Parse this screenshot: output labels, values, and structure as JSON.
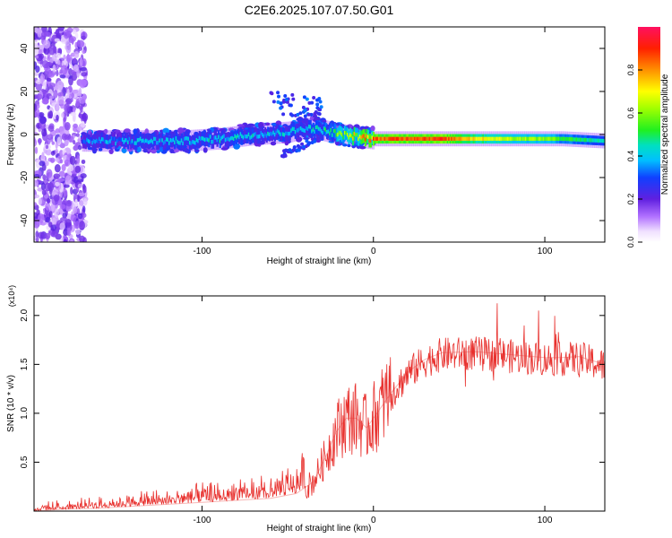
{
  "title": "C2E6.2025.107.07.50.G01",
  "chart_data": [
    {
      "type": "heatmap",
      "xlabel": "Height of straight line (km)",
      "ylabel": "Frequency (Hz)",
      "xlim": [
        -198,
        135
      ],
      "ylim": [
        -50,
        50
      ],
      "x_ticks": [
        -100,
        0,
        100
      ],
      "x_tick_labels": [
        "-100",
        "0",
        "100"
      ],
      "y_ticks": [
        -40,
        -20,
        0,
        20,
        40
      ],
      "y_tick_labels": [
        "-40",
        "-20",
        "0",
        "20",
        "40"
      ],
      "colorbar": {
        "label": "Normalized spectral amplitude",
        "range": [
          0.0,
          1.0
        ],
        "ticks": [
          0.0,
          0.2,
          0.4,
          0.6,
          0.8
        ],
        "tick_labels": [
          "0.0",
          "0.2",
          "0.4",
          "0.6",
          "0.8"
        ]
      },
      "ridge": {
        "height_km": [
          -170,
          -140,
          -110,
          -90,
          -70,
          -50,
          -40,
          -30,
          -20,
          -10,
          0,
          20,
          40,
          60,
          80,
          100,
          110,
          135
        ],
        "frequency_hz": [
          -3,
          -3,
          -3,
          -2,
          0,
          1,
          3,
          2,
          0,
          -1,
          -2,
          -2,
          -2,
          -2,
          -2,
          -2,
          -2,
          -3
        ],
        "amplitude": [
          0.35,
          0.38,
          0.4,
          0.42,
          0.42,
          0.4,
          0.42,
          0.45,
          0.6,
          0.7,
          0.85,
          0.9,
          0.9,
          0.75,
          0.65,
          0.62,
          0.55,
          0.45
        ]
      },
      "noise_region_km": [
        -198,
        -168
      ]
    },
    {
      "type": "line",
      "xlabel": "Height of straight line (km)",
      "ylabel": "SNR (10 * v/v)",
      "y_scale_label": "(x10⁴)",
      "xlim": [
        -198,
        135
      ],
      "ylim": [
        0,
        2.2
      ],
      "x_ticks": [
        -100,
        0,
        100
      ],
      "x_tick_labels": [
        "-100",
        "0",
        "100"
      ],
      "y_ticks": [
        0.5,
        1.0,
        1.5,
        2.0
      ],
      "y_tick_labels": [
        "0.5",
        "1.0",
        "1.5",
        "2.0"
      ],
      "series": [
        {
          "name": "SNR",
          "color": "#e8312e",
          "x": [
            -198,
            -180,
            -160,
            -140,
            -120,
            -100,
            -80,
            -60,
            -45,
            -35,
            -28,
            -22,
            -16,
            -10,
            -4,
            0,
            10,
            20,
            30,
            40,
            60,
            80,
            100,
            110,
            120,
            135
          ],
          "y": [
            0.0,
            0.02,
            0.03,
            0.05,
            0.07,
            0.09,
            0.11,
            0.13,
            0.18,
            0.3,
            0.55,
            0.8,
            0.95,
            0.95,
            0.85,
            0.95,
            1.2,
            1.42,
            1.55,
            1.62,
            1.63,
            1.6,
            1.57,
            1.57,
            1.58,
            1.5
          ]
        }
      ]
    }
  ]
}
